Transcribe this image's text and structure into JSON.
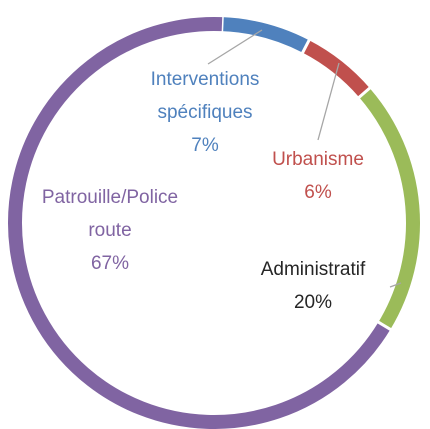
{
  "chart_data": {
    "type": "donut",
    "categories": [
      "Interventions spécifiques",
      "Urbanisme",
      "Administratif",
      "Patrouille/Police route"
    ],
    "values": [
      7,
      6,
      20,
      67
    ],
    "value_labels": [
      "7%",
      "6%",
      "20%",
      "67%"
    ],
    "colors": [
      "#4f81bd",
      "#c0504d",
      "#9bbb59",
      "#8064a2"
    ],
    "label_colors": [
      "#4f81bd",
      "#c0504d",
      "#262626",
      "#8064a2"
    ]
  }
}
